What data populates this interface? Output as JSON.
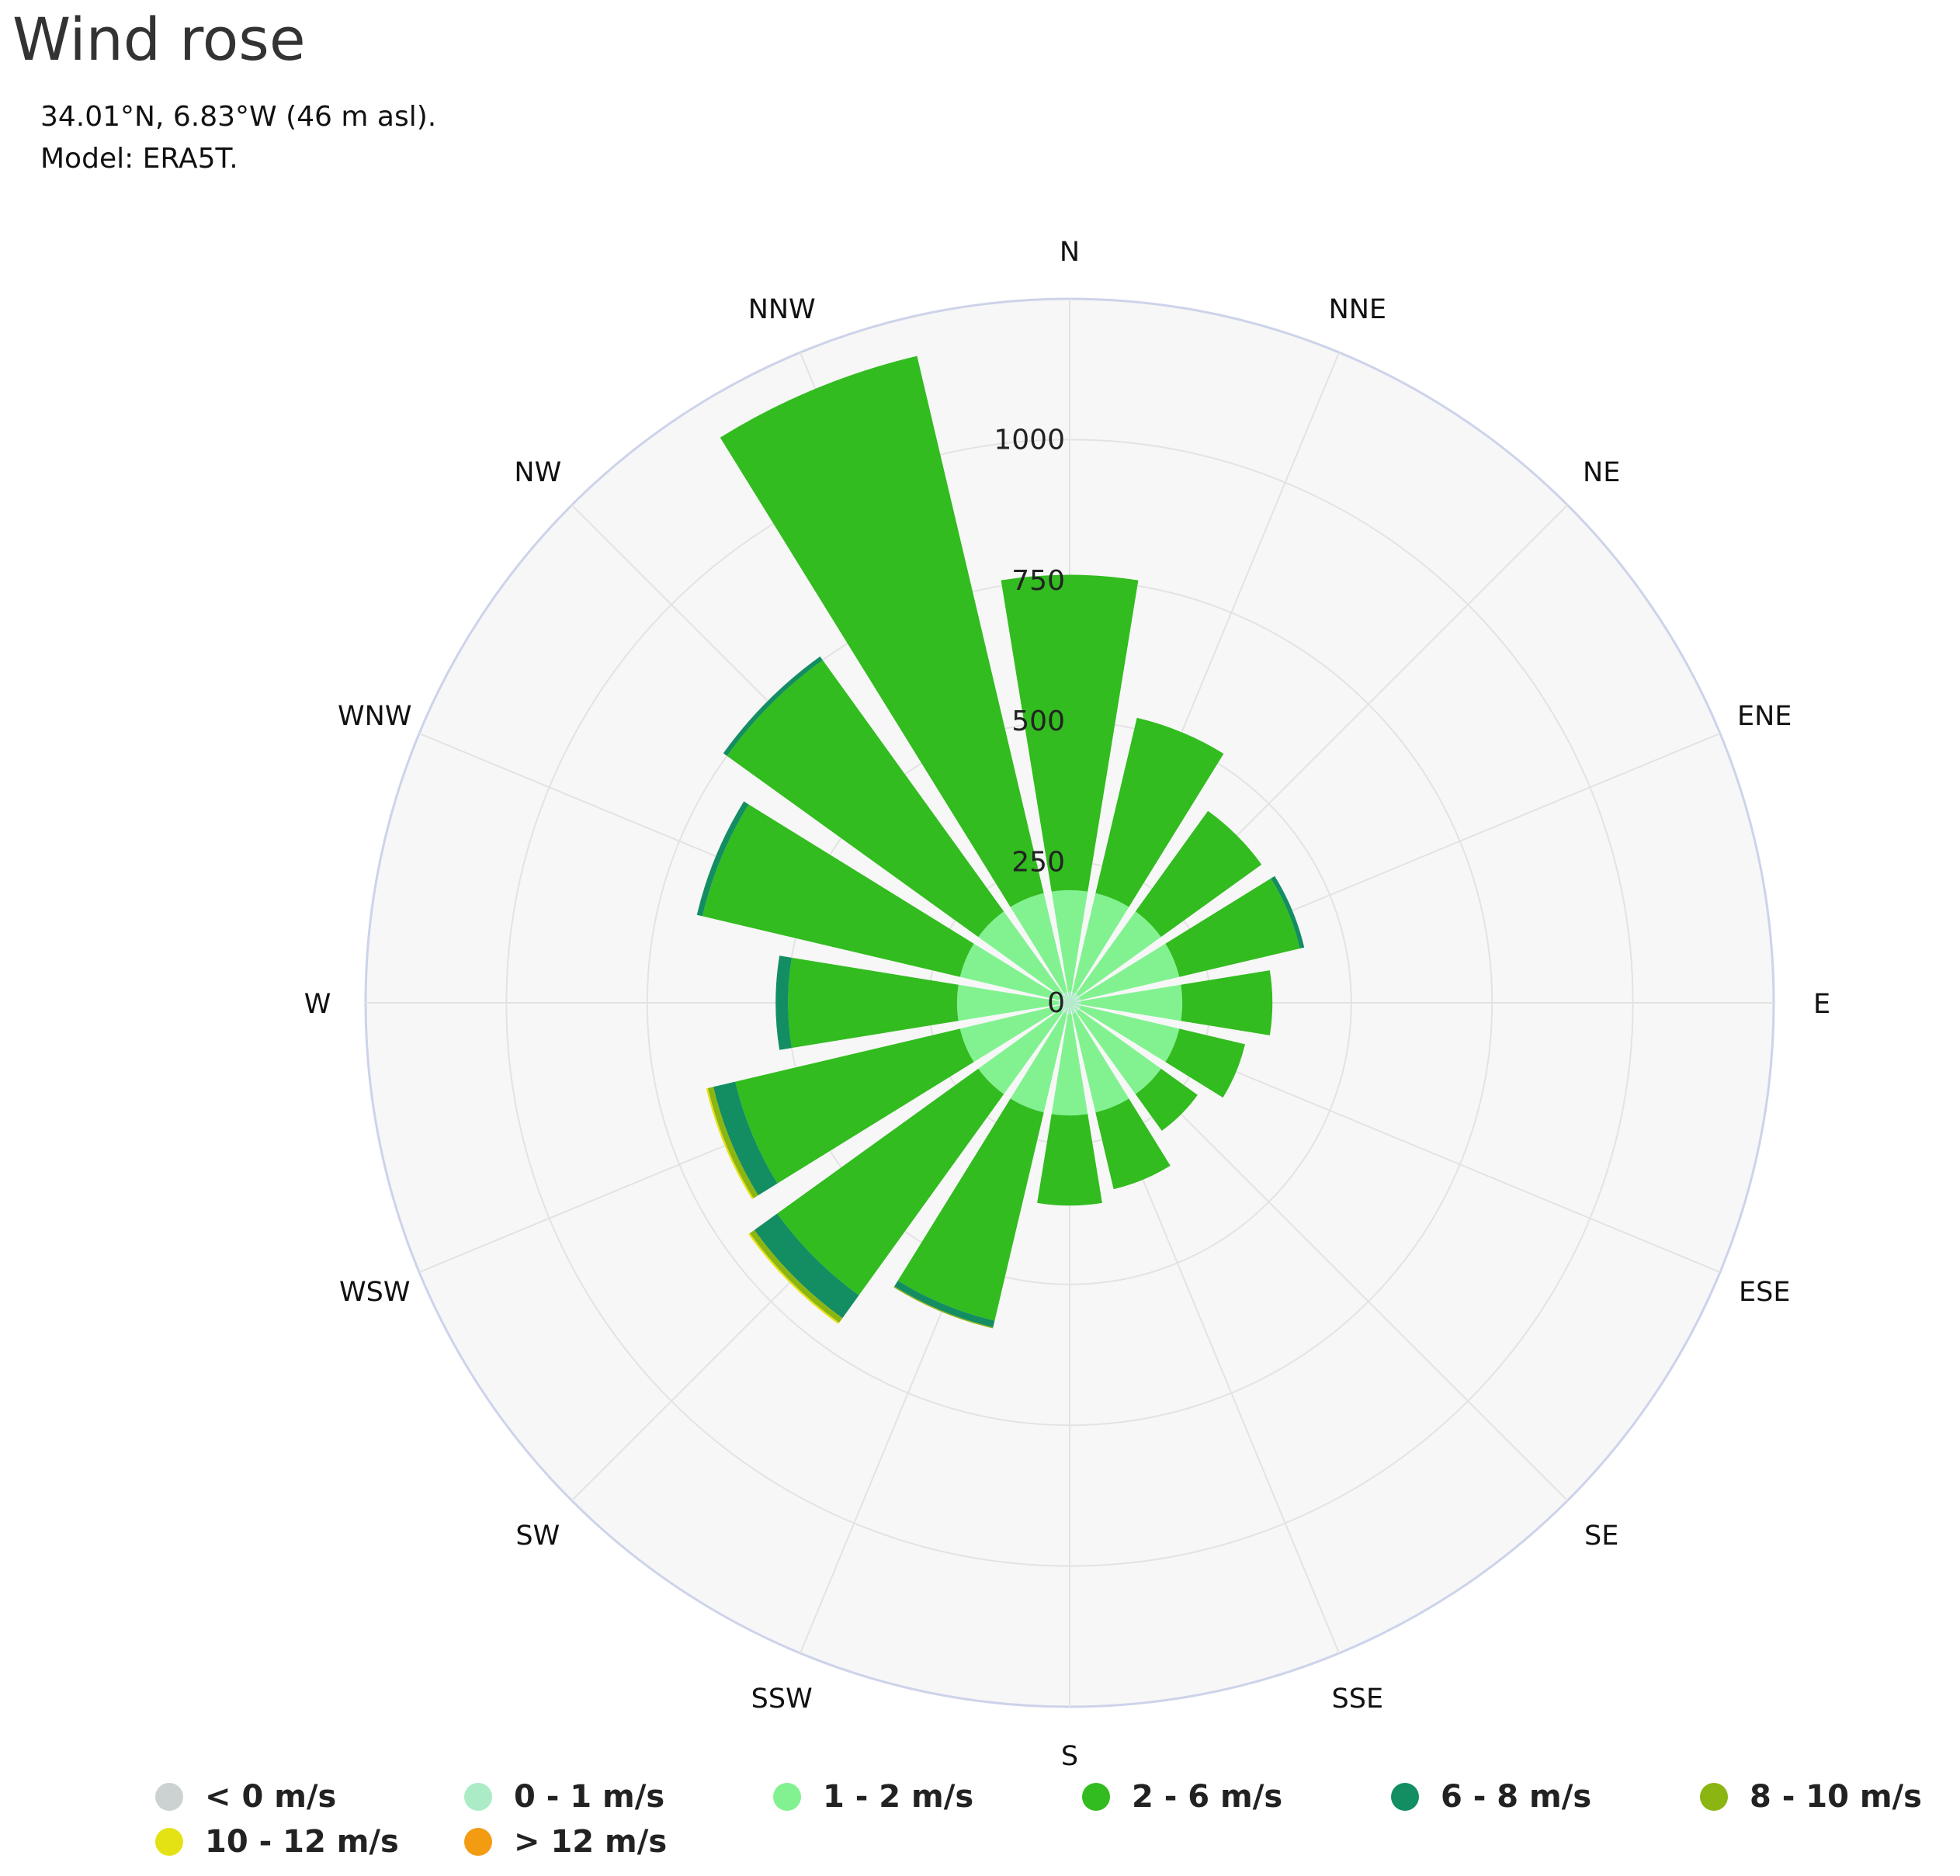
{
  "title": "Wind rose",
  "subtitle": [
    "34.01°N, 6.83°W (46 m asl).",
    "Model: ERA5T."
  ],
  "chart_data": {
    "type": "bar",
    "polar": true,
    "radial_ticks": [
      0,
      250,
      500,
      750,
      1000
    ],
    "radial_max": 1250,
    "directions": [
      "N",
      "NNE",
      "NE",
      "ENE",
      "E",
      "ESE",
      "SE",
      "SSE",
      "S",
      "SSW",
      "SW",
      "WSW",
      "W",
      "WNW",
      "NW",
      "NNW"
    ],
    "stacked": true,
    "series": [
      {
        "name": "< 0 m/s",
        "color": "#ccd1d1",
        "values": [
          0,
          0,
          0,
          0,
          0,
          0,
          0,
          0,
          0,
          0,
          0,
          0,
          0,
          0,
          0,
          0
        ]
      },
      {
        "name": "0 - 1 m/s",
        "color": "#abebc6",
        "values": [
          20,
          20,
          20,
          20,
          20,
          20,
          20,
          20,
          20,
          20,
          20,
          20,
          20,
          20,
          20,
          20
        ]
      },
      {
        "name": "1 - 2 m/s",
        "color": "#82f291",
        "values": [
          180,
          180,
          180,
          180,
          180,
          180,
          180,
          180,
          180,
          180,
          180,
          180,
          180,
          180,
          180,
          180
        ]
      },
      {
        "name": "2 - 6 m/s",
        "color": "#32bc1f",
        "values": [
          560,
          320,
          220,
          220,
          160,
          120,
          80,
          140,
          160,
          380,
          440,
          410,
          300,
          470,
          550,
          980
        ]
      },
      {
        "name": "6 - 8 m/s",
        "color": "#138d62",
        "values": [
          0,
          0,
          0,
          8,
          0,
          0,
          0,
          0,
          0,
          12,
          50,
          40,
          22,
          10,
          8,
          0
        ]
      },
      {
        "name": "8 - 10 m/s",
        "color": "#8bb511",
        "values": [
          0,
          0,
          0,
          0,
          0,
          0,
          0,
          0,
          0,
          2,
          10,
          10,
          0,
          0,
          0,
          0
        ]
      },
      {
        "name": "10 - 12 m/s",
        "color": "#e4e215",
        "values": [
          0,
          0,
          0,
          0,
          0,
          0,
          0,
          0,
          0,
          0,
          3,
          3,
          0,
          0,
          0,
          0
        ]
      },
      {
        "name": "> 12 m/s",
        "color": "#f39c12",
        "values": [
          0,
          0,
          0,
          0,
          0,
          0,
          0,
          0,
          0,
          0,
          0,
          0,
          0,
          0,
          0,
          0
        ]
      }
    ]
  }
}
